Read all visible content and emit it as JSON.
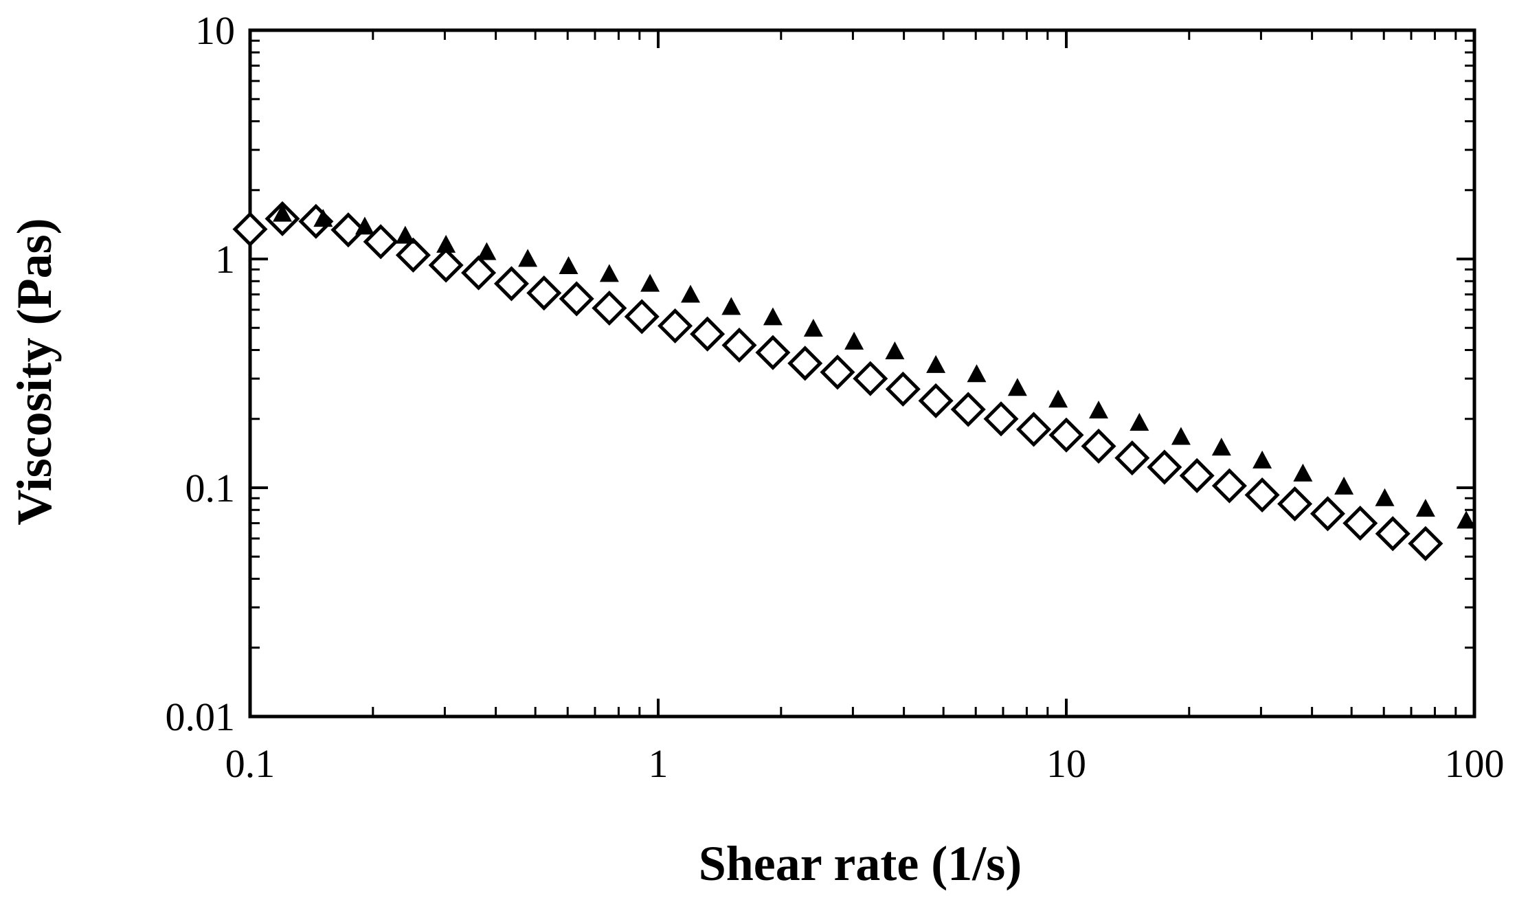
{
  "chart_data": {
    "type": "scatter",
    "xlabel": "Shear rate (1/s)",
    "ylabel": "Viscosity (Pas)",
    "xscale": "log",
    "yscale": "log",
    "xlim": [
      0.1,
      100
    ],
    "ylim": [
      0.01,
      10
    ],
    "x_tick_labels": [
      "0.1",
      "1",
      "10",
      "100"
    ],
    "y_tick_labels": [
      "0.01",
      "0.1",
      "1",
      "10"
    ],
    "grid": false,
    "legend": "none",
    "series": [
      {
        "marker": "open-diamond",
        "color": "#000000",
        "points": [
          {
            "x": 0.1,
            "y": 1.35
          },
          {
            "x": 0.12,
            "y": 1.5
          },
          {
            "x": 0.145,
            "y": 1.46
          },
          {
            "x": 0.174,
            "y": 1.34
          },
          {
            "x": 0.209,
            "y": 1.19
          },
          {
            "x": 0.251,
            "y": 1.04
          },
          {
            "x": 0.302,
            "y": 0.94
          },
          {
            "x": 0.363,
            "y": 0.87
          },
          {
            "x": 0.437,
            "y": 0.78
          },
          {
            "x": 0.525,
            "y": 0.71
          },
          {
            "x": 0.631,
            "y": 0.67
          },
          {
            "x": 0.759,
            "y": 0.61
          },
          {
            "x": 0.912,
            "y": 0.56
          },
          {
            "x": 1.1,
            "y": 0.51
          },
          {
            "x": 1.32,
            "y": 0.47
          },
          {
            "x": 1.58,
            "y": 0.42
          },
          {
            "x": 1.91,
            "y": 0.39
          },
          {
            "x": 2.29,
            "y": 0.35
          },
          {
            "x": 2.75,
            "y": 0.32
          },
          {
            "x": 3.31,
            "y": 0.3
          },
          {
            "x": 3.98,
            "y": 0.27
          },
          {
            "x": 4.79,
            "y": 0.24
          },
          {
            "x": 5.75,
            "y": 0.22
          },
          {
            "x": 6.92,
            "y": 0.2
          },
          {
            "x": 8.32,
            "y": 0.18
          },
          {
            "x": 10,
            "y": 0.17
          },
          {
            "x": 12,
            "y": 0.152
          },
          {
            "x": 14.5,
            "y": 0.135
          },
          {
            "x": 17.4,
            "y": 0.123
          },
          {
            "x": 20.9,
            "y": 0.113
          },
          {
            "x": 25.1,
            "y": 0.102
          },
          {
            "x": 30.2,
            "y": 0.093
          },
          {
            "x": 36.3,
            "y": 0.085
          },
          {
            "x": 43.7,
            "y": 0.077
          },
          {
            "x": 52.5,
            "y": 0.07
          },
          {
            "x": 63.1,
            "y": 0.063
          },
          {
            "x": 75.9,
            "y": 0.057
          }
        ]
      },
      {
        "marker": "filled-triangle",
        "color": "#000000",
        "points": [
          {
            "x": 0.12,
            "y": 1.56
          },
          {
            "x": 0.151,
            "y": 1.48
          },
          {
            "x": 0.191,
            "y": 1.37
          },
          {
            "x": 0.24,
            "y": 1.25
          },
          {
            "x": 0.302,
            "y": 1.14
          },
          {
            "x": 0.38,
            "y": 1.06
          },
          {
            "x": 0.479,
            "y": 0.99
          },
          {
            "x": 0.603,
            "y": 0.92
          },
          {
            "x": 0.759,
            "y": 0.85
          },
          {
            "x": 0.955,
            "y": 0.77
          },
          {
            "x": 1.2,
            "y": 0.69
          },
          {
            "x": 1.51,
            "y": 0.61
          },
          {
            "x": 1.91,
            "y": 0.55
          },
          {
            "x": 2.4,
            "y": 0.49
          },
          {
            "x": 3.02,
            "y": 0.43
          },
          {
            "x": 3.8,
            "y": 0.39
          },
          {
            "x": 4.79,
            "y": 0.34
          },
          {
            "x": 6.03,
            "y": 0.31
          },
          {
            "x": 7.59,
            "y": 0.27
          },
          {
            "x": 9.55,
            "y": 0.24
          },
          {
            "x": 12,
            "y": 0.215
          },
          {
            "x": 15.1,
            "y": 0.19
          },
          {
            "x": 19.1,
            "y": 0.165
          },
          {
            "x": 24,
            "y": 0.148
          },
          {
            "x": 30.2,
            "y": 0.13
          },
          {
            "x": 38,
            "y": 0.114
          },
          {
            "x": 47.9,
            "y": 0.1
          },
          {
            "x": 60.3,
            "y": 0.089
          },
          {
            "x": 75.9,
            "y": 0.08
          },
          {
            "x": 95.5,
            "y": 0.071
          }
        ]
      }
    ]
  }
}
